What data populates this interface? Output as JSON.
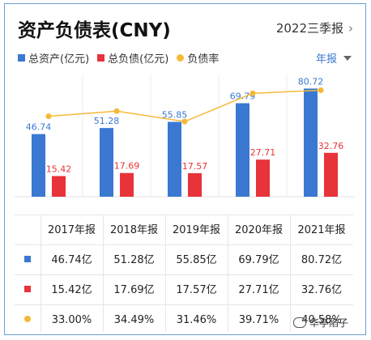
{
  "header": {
    "title": "资产负债表(CNY)",
    "period": "2022三季报",
    "annual_label": "年报"
  },
  "legend": [
    {
      "label": "总资产(亿元)",
      "color": "#3a78d2",
      "shape": "square"
    },
    {
      "label": "总负债(亿元)",
      "color": "#e8333a",
      "shape": "square"
    },
    {
      "label": "负债率",
      "color": "#f5b938",
      "shape": "dot"
    }
  ],
  "chart_data": {
    "type": "bar",
    "categories": [
      "2017年报",
      "2018年报",
      "2019年报",
      "2020年报",
      "2021年报"
    ],
    "series": [
      {
        "name": "总资产(亿元)",
        "values": [
          46.74,
          51.28,
          55.85,
          69.79,
          80.72
        ],
        "labels": [
          "46.74",
          "51.28",
          "55.85",
          "69.79",
          "80.72"
        ],
        "color": "#3a78d2",
        "kind": "bar"
      },
      {
        "name": "总负债(亿元)",
        "values": [
          15.42,
          17.69,
          17.57,
          27.71,
          32.76
        ],
        "labels": [
          "15.42",
          "17.69",
          "17.57",
          "27.71",
          "32.76"
        ],
        "color": "#e8333a",
        "kind": "bar"
      },
      {
        "name": "负债率",
        "values": [
          33.0,
          34.49,
          31.46,
          39.71,
          40.58
        ],
        "color": "#f5b938",
        "kind": "line",
        "unit": "%"
      }
    ],
    "grid": true
  },
  "table": {
    "headers": [
      "2017年报",
      "2018年报",
      "2019年报",
      "2020年报",
      "2021年报"
    ],
    "rows": [
      {
        "color": "#3a78d2",
        "shape": "square",
        "values": [
          "46.74亿",
          "51.28亿",
          "55.85亿",
          "69.79亿",
          "80.72亿"
        ]
      },
      {
        "color": "#e8333a",
        "shape": "square",
        "values": [
          "15.42亿",
          "17.69亿",
          "17.57亿",
          "27.71亿",
          "32.76亿"
        ]
      },
      {
        "color": "#f5b938",
        "shape": "dot",
        "values": [
          "33.00%",
          "34.49%",
          "31.46%",
          "39.71%",
          "40.58%"
        ]
      }
    ]
  },
  "watermark": "华亭陷子"
}
